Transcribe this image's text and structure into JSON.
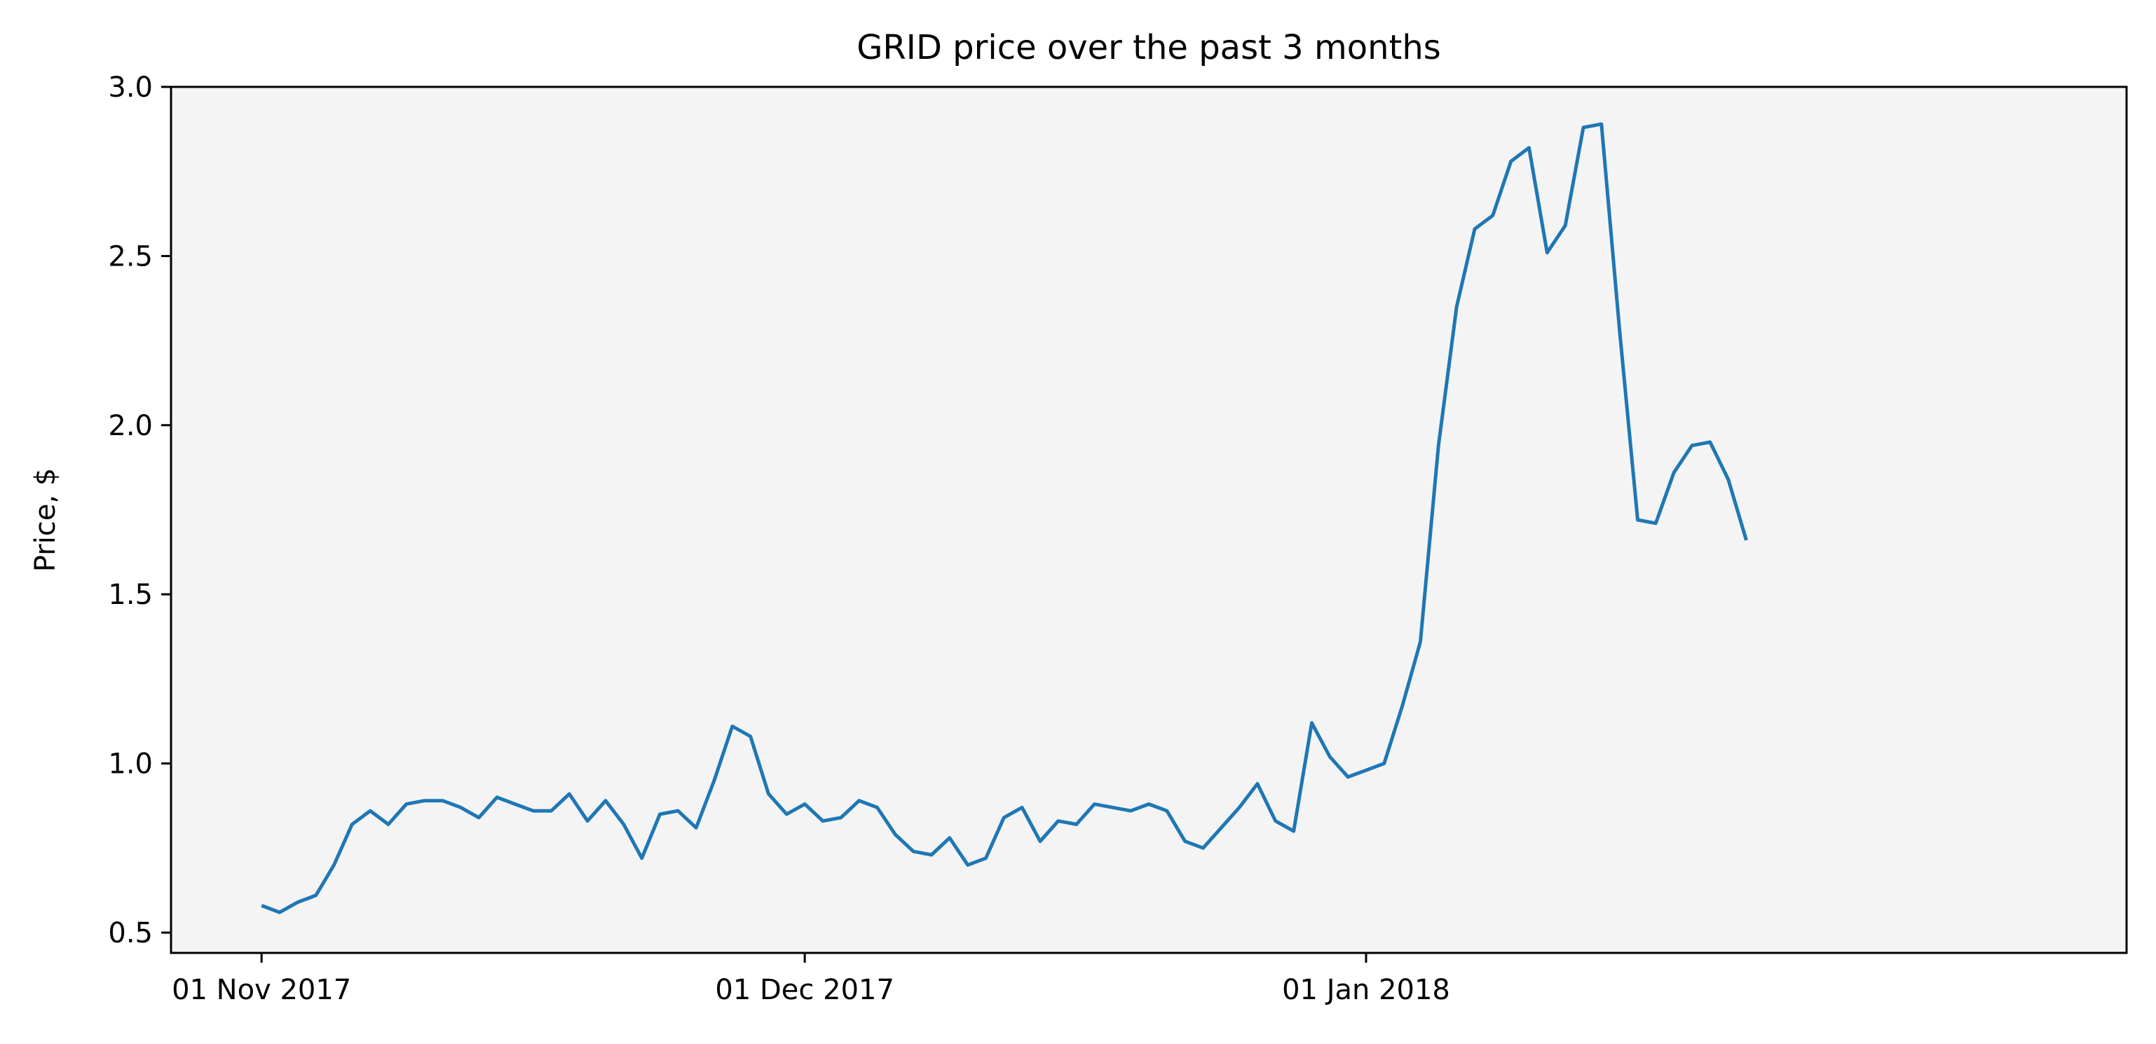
{
  "chart_data": {
    "type": "line",
    "title": "GRID price over the past 3 months",
    "xlabel": "",
    "ylabel": "Price, $",
    "ylim": [
      0.44,
      3.0
    ],
    "xlim": [
      "2017-10-27",
      "2018-02-12"
    ],
    "yticks": [
      {
        "value": 0.5,
        "label": "0.5"
      },
      {
        "value": 1.0,
        "label": "1.0"
      },
      {
        "value": 1.5,
        "label": "1.5"
      },
      {
        "value": 2.0,
        "label": "2.0"
      },
      {
        "value": 2.5,
        "label": "2.5"
      },
      {
        "value": 3.0,
        "label": "3.0"
      }
    ],
    "xticks": [
      {
        "value": "2017-11-01",
        "label": "01 Nov 2017"
      },
      {
        "value": "2017-12-01",
        "label": "01 Dec 2017"
      },
      {
        "value": "2018-01-01",
        "label": "01 Jan 2018"
      }
    ],
    "grid": false,
    "plot_background": "#f4f4f5",
    "series": [
      {
        "color": "#1f77b4",
        "points": [
          [
            "2017-11-01",
            0.58
          ],
          [
            "2017-11-02",
            0.56
          ],
          [
            "2017-11-03",
            0.59
          ],
          [
            "2017-11-04",
            0.61
          ],
          [
            "2017-11-05",
            0.7
          ],
          [
            "2017-11-06",
            0.82
          ],
          [
            "2017-11-07",
            0.86
          ],
          [
            "2017-11-08",
            0.82
          ],
          [
            "2017-11-09",
            0.88
          ],
          [
            "2017-11-10",
            0.89
          ],
          [
            "2017-11-11",
            0.89
          ],
          [
            "2017-11-12",
            0.87
          ],
          [
            "2017-11-13",
            0.84
          ],
          [
            "2017-11-14",
            0.9
          ],
          [
            "2017-11-15",
            0.88
          ],
          [
            "2017-11-16",
            0.86
          ],
          [
            "2017-11-17",
            0.86
          ],
          [
            "2017-11-18",
            0.91
          ],
          [
            "2017-11-19",
            0.83
          ],
          [
            "2017-11-20",
            0.89
          ],
          [
            "2017-11-21",
            0.82
          ],
          [
            "2017-11-22",
            0.72
          ],
          [
            "2017-11-23",
            0.85
          ],
          [
            "2017-11-24",
            0.86
          ],
          [
            "2017-11-25",
            0.81
          ],
          [
            "2017-11-26",
            0.95
          ],
          [
            "2017-11-27",
            1.11
          ],
          [
            "2017-11-28",
            1.08
          ],
          [
            "2017-11-29",
            0.91
          ],
          [
            "2017-11-30",
            0.85
          ],
          [
            "2017-12-01",
            0.88
          ],
          [
            "2017-12-02",
            0.83
          ],
          [
            "2017-12-03",
            0.84
          ],
          [
            "2017-12-04",
            0.89
          ],
          [
            "2017-12-05",
            0.87
          ],
          [
            "2017-12-06",
            0.79
          ],
          [
            "2017-12-07",
            0.74
          ],
          [
            "2017-12-08",
            0.73
          ],
          [
            "2017-12-09",
            0.78
          ],
          [
            "2017-12-10",
            0.7
          ],
          [
            "2017-12-11",
            0.72
          ],
          [
            "2017-12-12",
            0.84
          ],
          [
            "2017-12-13",
            0.87
          ],
          [
            "2017-12-14",
            0.77
          ],
          [
            "2017-12-15",
            0.83
          ],
          [
            "2017-12-16",
            0.82
          ],
          [
            "2017-12-17",
            0.88
          ],
          [
            "2017-12-18",
            0.87
          ],
          [
            "2017-12-19",
            0.86
          ],
          [
            "2017-12-20",
            0.88
          ],
          [
            "2017-12-21",
            0.86
          ],
          [
            "2017-12-22",
            0.77
          ],
          [
            "2017-12-23",
            0.75
          ],
          [
            "2017-12-24",
            0.81
          ],
          [
            "2017-12-25",
            0.87
          ],
          [
            "2017-12-26",
            0.94
          ],
          [
            "2017-12-27",
            0.83
          ],
          [
            "2017-12-28",
            0.8
          ],
          [
            "2017-12-29",
            1.12
          ],
          [
            "2017-12-30",
            1.02
          ],
          [
            "2017-12-31",
            0.96
          ],
          [
            "2018-01-01",
            0.98
          ],
          [
            "2018-01-02",
            1.0
          ],
          [
            "2018-01-03",
            1.17
          ],
          [
            "2018-01-04",
            1.36
          ],
          [
            "2018-01-05",
            1.94
          ],
          [
            "2018-01-06",
            2.35
          ],
          [
            "2018-01-07",
            2.58
          ],
          [
            "2018-01-08",
            2.62
          ],
          [
            "2018-01-09",
            2.78
          ],
          [
            "2018-01-10",
            2.82
          ],
          [
            "2018-01-11",
            2.51
          ],
          [
            "2018-01-12",
            2.59
          ],
          [
            "2018-01-13",
            2.88
          ],
          [
            "2018-01-14",
            2.89
          ],
          [
            "2018-01-15",
            2.28
          ],
          [
            "2018-01-16",
            1.72
          ],
          [
            "2018-01-17",
            1.71
          ],
          [
            "2018-01-18",
            1.86
          ],
          [
            "2018-01-19",
            1.94
          ],
          [
            "2018-01-20",
            1.95
          ],
          [
            "2018-01-21",
            1.84
          ],
          [
            "2018-01-22",
            1.66
          ]
        ]
      }
    ]
  }
}
